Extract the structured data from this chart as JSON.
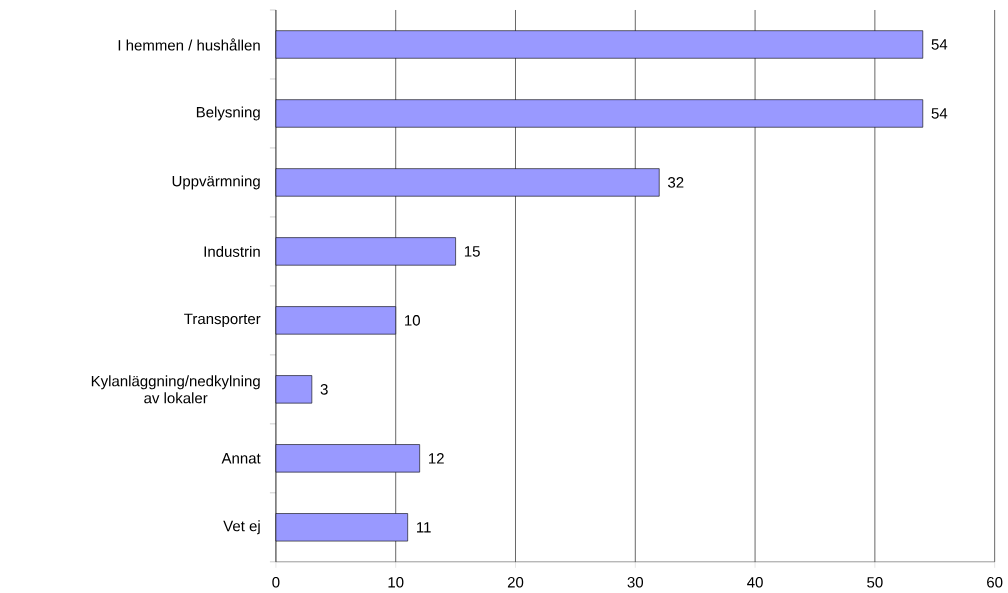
{
  "chart_data": {
    "type": "bar",
    "orientation": "horizontal",
    "categories": [
      "I hemmen / hushållen",
      "Belysning",
      "Uppvärmning",
      "Industrin",
      "Transporter",
      "Kylanläggning/nedkylning av lokaler",
      "Annat",
      "Vet ej"
    ],
    "values": [
      54,
      54,
      32,
      15,
      10,
      3,
      12,
      11
    ],
    "color": "#9999ff",
    "xlim": [
      0,
      60
    ],
    "xticks": [
      0,
      10,
      20,
      30,
      40,
      50,
      60
    ],
    "grid": "x",
    "data_labels": true
  }
}
